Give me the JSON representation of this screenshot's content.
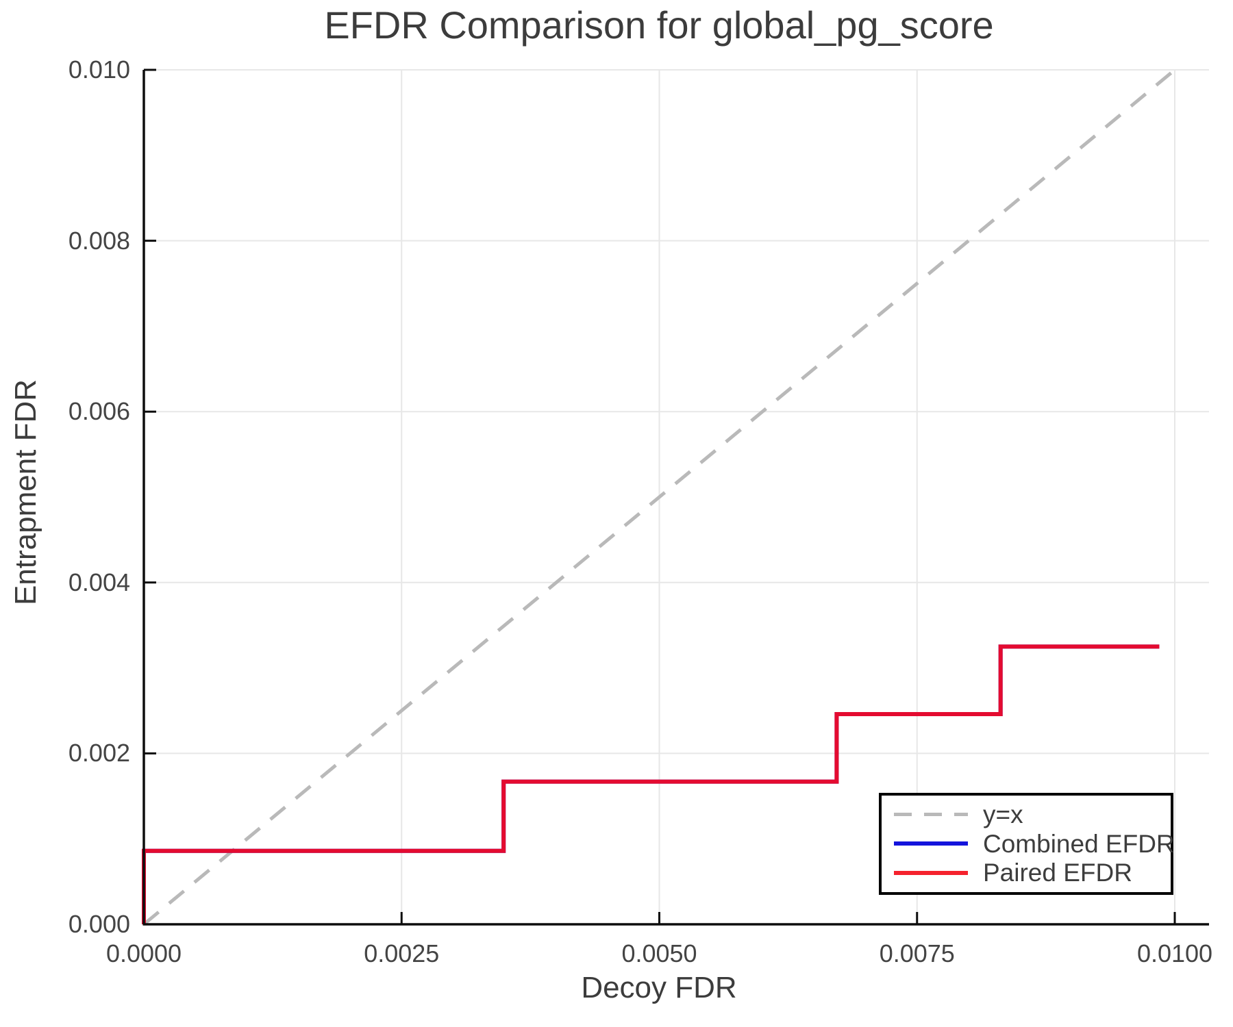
{
  "chart_data": {
    "type": "line",
    "title": "EFDR Comparison for global_pg_score",
    "xlabel": "Decoy FDR",
    "ylabel": "Entrapment FDR",
    "xlim": [
      0.0,
      0.010332
    ],
    "ylim": [
      0.0,
      0.01
    ],
    "grid": true,
    "x_ticks": {
      "values": [
        0.0,
        0.0025,
        0.005,
        0.0075,
        0.01
      ],
      "labels": [
        "0.0000",
        "0.0025",
        "0.0050",
        "0.0075",
        "0.0100"
      ]
    },
    "y_ticks": {
      "values": [
        0.0,
        0.002,
        0.004,
        0.006,
        0.008,
        0.01
      ],
      "labels": [
        "0.000",
        "0.002",
        "0.004",
        "0.006",
        "0.008",
        "0.010"
      ]
    },
    "series": [
      {
        "name": "y=x",
        "color": "#b9b9b9",
        "dashed": true,
        "width": 5,
        "points": [
          [
            0.0,
            0.0
          ],
          [
            0.01,
            0.01
          ]
        ]
      },
      {
        "name": "Combined EFDR",
        "color": "#1414dc",
        "dashed": false,
        "width": 6,
        "points": [
          [
            0.0,
            0.0
          ],
          [
            0.0,
            0.00086
          ],
          [
            0.00349,
            0.00086
          ],
          [
            0.00349,
            0.00167
          ],
          [
            0.00672,
            0.00167
          ],
          [
            0.00672,
            0.00246
          ],
          [
            0.00831,
            0.00246
          ],
          [
            0.00831,
            0.00325
          ],
          [
            0.00985,
            0.00325
          ]
        ]
      },
      {
        "name": "Paired EFDR",
        "color": "#e40b30",
        "dashed": false,
        "width": 6,
        "points": [
          [
            0.0,
            0.0
          ],
          [
            0.0,
            0.00086
          ],
          [
            0.00349,
            0.00086
          ],
          [
            0.00349,
            0.00167
          ],
          [
            0.00672,
            0.00167
          ],
          [
            0.00672,
            0.00246
          ],
          [
            0.00831,
            0.00246
          ],
          [
            0.00831,
            0.00325
          ],
          [
            0.00985,
            0.00325
          ]
        ]
      }
    ],
    "legend": {
      "position": "lower right",
      "entries": [
        {
          "label": "y=x",
          "color": "#b9b9b9",
          "dashed": true
        },
        {
          "label": "Combined EFDR",
          "color": "#1414dc",
          "dashed": false
        },
        {
          "label": "Paired EFDR",
          "color": "#f5222d",
          "dashed": false
        }
      ]
    },
    "colors": {
      "grid": "#e7e7e7",
      "spine": "#0d0d0d",
      "text": "#3c3c3c"
    }
  }
}
